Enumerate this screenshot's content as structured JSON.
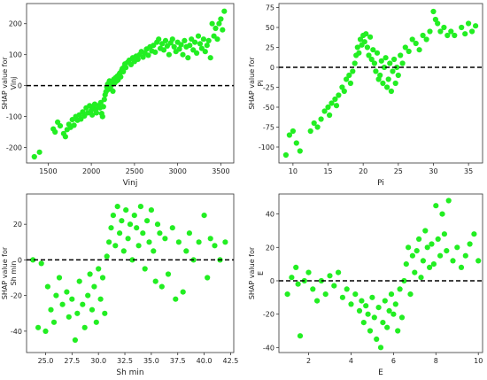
{
  "chart_data": [
    {
      "type": "scatter",
      "xlabel": "Vinj",
      "ylabel": "SHAP value for\nVinj",
      "xlim": [
        1250,
        3650
      ],
      "ylim": [
        -250,
        265
      ],
      "xticks": [
        1500,
        2000,
        2500,
        3000,
        3500
      ],
      "yticks": [
        -200,
        -100,
        0,
        100,
        200
      ],
      "baseline": 0,
      "point_color": "#22ee22",
      "points": [
        [
          1340,
          -230
        ],
        [
          1400,
          -215
        ],
        [
          1560,
          -140
        ],
        [
          1580,
          -150
        ],
        [
          1610,
          -118
        ],
        [
          1640,
          -130
        ],
        [
          1680,
          -155
        ],
        [
          1700,
          -165
        ],
        [
          1720,
          -142
        ],
        [
          1740,
          -125
        ],
        [
          1760,
          -135
        ],
        [
          1780,
          -110
        ],
        [
          1800,
          -128
        ],
        [
          1820,
          -100
        ],
        [
          1840,
          -112
        ],
        [
          1860,
          -95
        ],
        [
          1880,
          -108
        ],
        [
          1900,
          -85
        ],
        [
          1920,
          -98
        ],
        [
          1940,
          -72
        ],
        [
          1960,
          -88
        ],
        [
          1980,
          -65
        ],
        [
          2000,
          -80
        ],
        [
          2010,
          -95
        ],
        [
          2020,
          -70
        ],
        [
          2040,
          -60
        ],
        [
          2050,
          -78
        ],
        [
          2060,
          -88
        ],
        [
          2080,
          -65
        ],
        [
          2100,
          -72
        ],
        [
          2110,
          -55
        ],
        [
          2120,
          -90
        ],
        [
          2130,
          -100
        ],
        [
          2140,
          -68
        ],
        [
          2150,
          -45
        ],
        [
          2160,
          -30
        ],
        [
          2170,
          -20
        ],
        [
          2180,
          -5
        ],
        [
          2190,
          5
        ],
        [
          2200,
          -12
        ],
        [
          2210,
          15
        ],
        [
          2220,
          -8
        ],
        [
          2230,
          0
        ],
        [
          2240,
          10
        ],
        [
          2250,
          -18
        ],
        [
          2260,
          20
        ],
        [
          2270,
          8
        ],
        [
          2280,
          25
        ],
        [
          2290,
          14
        ],
        [
          2300,
          30
        ],
        [
          2310,
          18
        ],
        [
          2320,
          35
        ],
        [
          2330,
          40
        ],
        [
          2340,
          28
        ],
        [
          2350,
          48
        ],
        [
          2360,
          55
        ],
        [
          2370,
          45
        ],
        [
          2380,
          60
        ],
        [
          2390,
          70
        ],
        [
          2400,
          58
        ],
        [
          2420,
          75
        ],
        [
          2440,
          82
        ],
        [
          2460,
          68
        ],
        [
          2480,
          90
        ],
        [
          2500,
          78
        ],
        [
          2520,
          95
        ],
        [
          2540,
          85
        ],
        [
          2560,
          100
        ],
        [
          2580,
          110
        ],
        [
          2600,
          92
        ],
        [
          2620,
          105
        ],
        [
          2640,
          118
        ],
        [
          2660,
          98
        ],
        [
          2680,
          125
        ],
        [
          2700,
          112
        ],
        [
          2720,
          130
        ],
        [
          2740,
          108
        ],
        [
          2760,
          140
        ],
        [
          2780,
          150
        ],
        [
          2800,
          120
        ],
        [
          2820,
          135
        ],
        [
          2840,
          115
        ],
        [
          2860,
          145
        ],
        [
          2880,
          128
        ],
        [
          2900,
          100
        ],
        [
          2920,
          138
        ],
        [
          2940,
          150
        ],
        [
          2960,
          125
        ],
        [
          2980,
          110
        ],
        [
          3000,
          140
        ],
        [
          3020,
          118
        ],
        [
          3040,
          132
        ],
        [
          3060,
          100
        ],
        [
          3080,
          145
        ],
        [
          3100,
          125
        ],
        [
          3120,
          90
        ],
        [
          3140,
          130
        ],
        [
          3160,
          150
        ],
        [
          3180,
          115
        ],
        [
          3200,
          140
        ],
        [
          3220,
          105
        ],
        [
          3240,
          160
        ],
        [
          3260,
          135
        ],
        [
          3280,
          120
        ],
        [
          3300,
          150
        ],
        [
          3320,
          110
        ],
        [
          3340,
          130
        ],
        [
          3360,
          145
        ],
        [
          3380,
          90
        ],
        [
          3400,
          200
        ],
        [
          3420,
          160
        ],
        [
          3440,
          185
        ],
        [
          3460,
          150
        ],
        [
          3480,
          200
        ],
        [
          3500,
          215
        ],
        [
          3520,
          180
        ],
        [
          3540,
          240
        ]
      ]
    },
    {
      "type": "scatter",
      "xlabel": "Pi",
      "ylabel": "SHAP value for\nPi",
      "xlim": [
        8,
        37
      ],
      "ylim": [
        -120,
        80
      ],
      "xticks": [
        10,
        15,
        20,
        25,
        30,
        35
      ],
      "yticks": [
        -100,
        -75,
        -50,
        -25,
        0,
        25,
        50,
        75
      ],
      "baseline": 0,
      "point_color": "#22ee22",
      "points": [
        [
          9.0,
          -110
        ],
        [
          9.5,
          -85
        ],
        [
          10.0,
          -80
        ],
        [
          10.5,
          -95
        ],
        [
          11.0,
          -105
        ],
        [
          12.5,
          -80
        ],
        [
          13.0,
          -70
        ],
        [
          13.5,
          -75
        ],
        [
          14.0,
          -65
        ],
        [
          14.5,
          -55
        ],
        [
          15.0,
          -50
        ],
        [
          15.2,
          -60
        ],
        [
          15.5,
          -45
        ],
        [
          16.0,
          -40
        ],
        [
          16.2,
          -48
        ],
        [
          16.5,
          -35
        ],
        [
          17.0,
          -25
        ],
        [
          17.3,
          -30
        ],
        [
          17.6,
          -15
        ],
        [
          18.0,
          -10
        ],
        [
          18.2,
          -20
        ],
        [
          18.5,
          -5
        ],
        [
          18.8,
          5
        ],
        [
          19.0,
          15
        ],
        [
          19.2,
          25
        ],
        [
          19.4,
          18
        ],
        [
          19.6,
          35
        ],
        [
          19.8,
          28
        ],
        [
          20.0,
          40
        ],
        [
          20.2,
          32
        ],
        [
          20.4,
          42
        ],
        [
          20.6,
          25
        ],
        [
          20.8,
          15
        ],
        [
          21.0,
          38
        ],
        [
          21.2,
          10
        ],
        [
          21.4,
          22
        ],
        [
          21.6,
          5
        ],
        [
          21.8,
          -5
        ],
        [
          22.0,
          18
        ],
        [
          22.2,
          -15
        ],
        [
          22.4,
          -10
        ],
        [
          22.6,
          8
        ],
        [
          22.8,
          -20
        ],
        [
          23.0,
          0
        ],
        [
          23.2,
          12
        ],
        [
          23.4,
          -25
        ],
        [
          23.6,
          -15
        ],
        [
          23.8,
          5
        ],
        [
          24.0,
          -30
        ],
        [
          24.2,
          -5
        ],
        [
          24.4,
          10
        ],
        [
          24.6,
          -20
        ],
        [
          24.8,
          0
        ],
        [
          25.0,
          -10
        ],
        [
          25.3,
          15
        ],
        [
          25.6,
          5
        ],
        [
          26.0,
          25
        ],
        [
          26.5,
          20
        ],
        [
          27.0,
          35
        ],
        [
          27.5,
          30
        ],
        [
          28.0,
          22
        ],
        [
          28.5,
          40
        ],
        [
          29.0,
          35
        ],
        [
          29.5,
          45
        ],
        [
          30.0,
          70
        ],
        [
          30.3,
          60
        ],
        [
          30.6,
          55
        ],
        [
          31.0,
          45
        ],
        [
          31.5,
          50
        ],
        [
          32.0,
          40
        ],
        [
          32.5,
          45
        ],
        [
          33.0,
          40
        ],
        [
          34.0,
          50
        ],
        [
          34.5,
          42
        ],
        [
          35.0,
          55
        ],
        [
          35.5,
          45
        ],
        [
          36.0,
          52
        ]
      ]
    },
    {
      "type": "scatter",
      "xlabel": "Sh min",
      "ylabel": "SHAP value for\nSh min",
      "xlim": [
        23.2,
        42.8
      ],
      "ylim": [
        -52,
        37
      ],
      "xticks": [
        25.0,
        27.5,
        30.0,
        32.5,
        35.0,
        37.5,
        40.0,
        42.5
      ],
      "yticks": [
        -40,
        -20,
        0,
        20
      ],
      "baseline": 0,
      "point_color": "#22ee22",
      "points": [
        [
          23.8,
          0
        ],
        [
          24.3,
          -38
        ],
        [
          24.6,
          -2
        ],
        [
          25.0,
          -40
        ],
        [
          25.2,
          -15
        ],
        [
          25.5,
          -28
        ],
        [
          25.8,
          -35
        ],
        [
          26.0,
          -20
        ],
        [
          26.3,
          -10
        ],
        [
          26.6,
          -25
        ],
        [
          27.0,
          -18
        ],
        [
          27.2,
          -32
        ],
        [
          27.5,
          -22
        ],
        [
          27.8,
          -45
        ],
        [
          28.0,
          -30
        ],
        [
          28.2,
          -12
        ],
        [
          28.5,
          -25
        ],
        [
          28.7,
          -38
        ],
        [
          29.0,
          -20
        ],
        [
          29.2,
          -8
        ],
        [
          29.4,
          -28
        ],
        [
          29.6,
          -15
        ],
        [
          29.8,
          -35
        ],
        [
          30.0,
          -5
        ],
        [
          30.2,
          -22
        ],
        [
          30.4,
          -10
        ],
        [
          30.6,
          -30
        ],
        [
          30.8,
          2
        ],
        [
          31.0,
          10
        ],
        [
          31.2,
          18
        ],
        [
          31.4,
          25
        ],
        [
          31.6,
          8
        ],
        [
          31.8,
          30
        ],
        [
          32.0,
          15
        ],
        [
          32.2,
          22
        ],
        [
          32.4,
          5
        ],
        [
          32.6,
          28
        ],
        [
          32.8,
          12
        ],
        [
          33.0,
          20
        ],
        [
          33.2,
          0
        ],
        [
          33.4,
          25
        ],
        [
          33.6,
          18
        ],
        [
          33.8,
          8
        ],
        [
          34.0,
          30
        ],
        [
          34.2,
          15
        ],
        [
          34.4,
          -5
        ],
        [
          34.6,
          22
        ],
        [
          34.8,
          10
        ],
        [
          35.0,
          28
        ],
        [
          35.2,
          5
        ],
        [
          35.4,
          -12
        ],
        [
          35.6,
          20
        ],
        [
          35.8,
          15
        ],
        [
          36.0,
          -15
        ],
        [
          36.3,
          12
        ],
        [
          36.6,
          -8
        ],
        [
          37.0,
          18
        ],
        [
          37.3,
          -22
        ],
        [
          37.6,
          10
        ],
        [
          38.0,
          -18
        ],
        [
          38.3,
          5
        ],
        [
          38.6,
          15
        ],
        [
          39.0,
          0
        ],
        [
          39.5,
          10
        ],
        [
          40.0,
          25
        ],
        [
          40.3,
          -10
        ],
        [
          40.6,
          12
        ],
        [
          41.0,
          8
        ],
        [
          41.5,
          0
        ],
        [
          42.0,
          10
        ]
      ]
    },
    {
      "type": "scatter",
      "xlabel": "E",
      "ylabel": "SHAP value for\nE",
      "xlim": [
        0.6,
        10.2
      ],
      "ylim": [
        -43,
        52
      ],
      "xticks": [
        2,
        4,
        6,
        8,
        10
      ],
      "yticks": [
        -40,
        -20,
        0,
        20,
        40
      ],
      "baseline": 0,
      "point_color": "#22ee22",
      "points": [
        [
          1.0,
          -8
        ],
        [
          1.2,
          2
        ],
        [
          1.4,
          8
        ],
        [
          1.5,
          -2
        ],
        [
          1.6,
          -33
        ],
        [
          1.8,
          0
        ],
        [
          2.0,
          5
        ],
        [
          2.2,
          -5
        ],
        [
          2.4,
          -12
        ],
        [
          2.6,
          0
        ],
        [
          2.8,
          -8
        ],
        [
          3.0,
          3
        ],
        [
          3.2,
          -3
        ],
        [
          3.4,
          5
        ],
        [
          3.6,
          -10
        ],
        [
          3.8,
          -5
        ],
        [
          4.0,
          -14
        ],
        [
          4.2,
          -8
        ],
        [
          4.4,
          -18
        ],
        [
          4.5,
          -12
        ],
        [
          4.6,
          -25
        ],
        [
          4.7,
          -15
        ],
        [
          4.8,
          -20
        ],
        [
          4.9,
          -30
        ],
        [
          5.0,
          -10
        ],
        [
          5.1,
          -22
        ],
        [
          5.2,
          -35
        ],
        [
          5.3,
          -16
        ],
        [
          5.4,
          -40
        ],
        [
          5.5,
          -25
        ],
        [
          5.6,
          -12
        ],
        [
          5.7,
          -28
        ],
        [
          5.8,
          -18
        ],
        [
          5.9,
          -8
        ],
        [
          6.0,
          -20
        ],
        [
          6.1,
          -14
        ],
        [
          6.2,
          -30
        ],
        [
          6.3,
          -5
        ],
        [
          6.4,
          -22
        ],
        [
          6.5,
          0
        ],
        [
          6.6,
          10
        ],
        [
          6.7,
          20
        ],
        [
          6.8,
          -8
        ],
        [
          6.9,
          15
        ],
        [
          7.0,
          5
        ],
        [
          7.1,
          18
        ],
        [
          7.2,
          25
        ],
        [
          7.3,
          2
        ],
        [
          7.4,
          12
        ],
        [
          7.5,
          30
        ],
        [
          7.6,
          20
        ],
        [
          7.7,
          8
        ],
        [
          7.8,
          22
        ],
        [
          7.9,
          10
        ],
        [
          8.0,
          45
        ],
        [
          8.1,
          25
        ],
        [
          8.2,
          15
        ],
        [
          8.3,
          40
        ],
        [
          8.4,
          28
        ],
        [
          8.5,
          18
        ],
        [
          8.6,
          48
        ],
        [
          8.8,
          12
        ],
        [
          9.0,
          20
        ],
        [
          9.2,
          8
        ],
        [
          9.4,
          15
        ],
        [
          9.6,
          22
        ],
        [
          9.8,
          28
        ],
        [
          10.0,
          12
        ]
      ]
    }
  ]
}
